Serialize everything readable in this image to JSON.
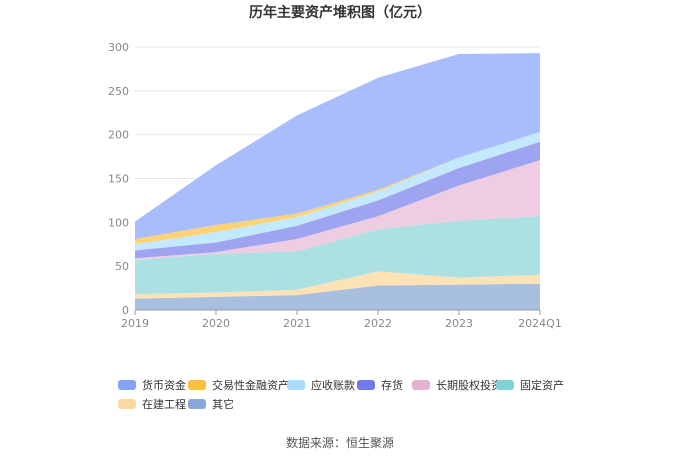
{
  "chart_data": {
    "type": "area",
    "stacked": true,
    "title": "历年主要资产堆积图（亿元）",
    "categories": [
      "2019",
      "2020",
      "2021",
      "2022",
      "2023",
      "2024Q1"
    ],
    "ylim": [
      0,
      300
    ],
    "yticks": [
      0,
      50,
      100,
      150,
      200,
      250,
      300
    ],
    "grid": true,
    "legend_position": "bottom",
    "series": [
      {
        "name": "其它",
        "color": "#a9bfe0",
        "values": [
          13,
          15,
          17,
          28,
          29,
          30
        ]
      },
      {
        "name": "在建工程",
        "color": "#fce2b5",
        "values": [
          5,
          5,
          6,
          16,
          8,
          10
        ]
      },
      {
        "name": "固定资产",
        "color": "#ace1e3",
        "values": [
          39,
          44,
          44,
          48,
          65,
          67
        ]
      },
      {
        "name": "长期股权投资",
        "color": "#eecde2",
        "values": [
          2,
          2,
          14,
          15,
          40,
          64
        ]
      },
      {
        "name": "存货",
        "color": "#9ea4ef",
        "values": [
          9,
          11,
          15,
          18,
          20,
          21
        ]
      },
      {
        "name": "应收账款",
        "color": "#c4e8fc",
        "values": [
          7,
          12,
          10,
          10,
          12,
          11
        ]
      },
      {
        "name": "交易性金融资产",
        "color": "#fdd375",
        "values": [
          6,
          8,
          4,
          2,
          0,
          0
        ]
      },
      {
        "name": "货币资金",
        "color": "#a9bdfd",
        "values": [
          20,
          68,
          112,
          128,
          118,
          90
        ]
      }
    ]
  },
  "legend_items": [
    {
      "name": "货币资金",
      "color": "#85a3f6"
    },
    {
      "name": "交易性金融资产",
      "color": "#f9c13d"
    },
    {
      "name": "应收账款",
      "color": "#a8dcfa"
    },
    {
      "name": "存货",
      "color": "#7279ea"
    },
    {
      "name": "长期股权投资",
      "color": "#e4b3d4"
    },
    {
      "name": "固定资产",
      "color": "#7fd3d6"
    },
    {
      "name": "在建工程",
      "color": "#fad8a0"
    },
    {
      "name": "其它",
      "color": "#8aa7d9"
    }
  ],
  "source": "数据来源：恒生聚源"
}
